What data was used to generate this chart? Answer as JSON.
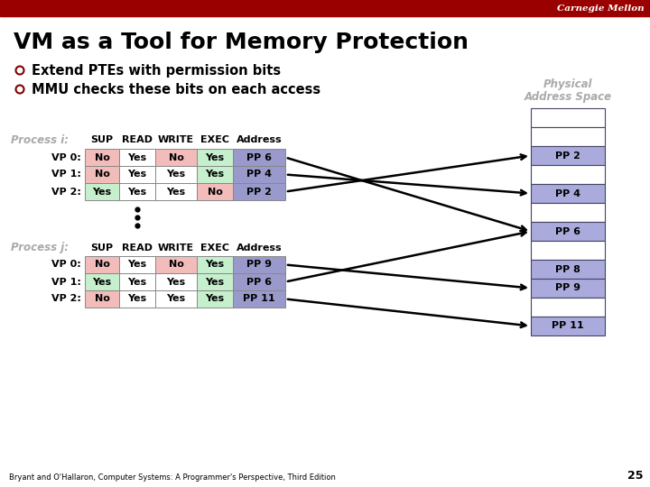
{
  "title": "VM as a Tool for Memory Protection",
  "bullets": [
    "Extend PTEs with permission bits",
    "MMU checks these bits on each access"
  ],
  "header_bar_color": "#9B0000",
  "carnegie_mellon_text": "Carnegie Mellon",
  "bg_color": "#FFFFFF",
  "process_i_label": "Process i:",
  "process_j_label": "Process j:",
  "col_headers": [
    "SUP",
    "READ",
    "WRITE",
    "EXEC",
    "Address"
  ],
  "process_i_rows": [
    {
      "label": "VP 0:",
      "SUP": "No",
      "READ": "Yes",
      "WRITE": "No",
      "EXEC": "Yes",
      "Address": "PP 6"
    },
    {
      "label": "VP 1:",
      "SUP": "No",
      "READ": "Yes",
      "WRITE": "Yes",
      "EXEC": "Yes",
      "Address": "PP 4"
    },
    {
      "label": "VP 2:",
      "SUP": "Yes",
      "READ": "Yes",
      "WRITE": "Yes",
      "EXEC": "No",
      "Address": "PP 2"
    }
  ],
  "process_j_rows": [
    {
      "label": "VP 0:",
      "SUP": "No",
      "READ": "Yes",
      "WRITE": "No",
      "EXEC": "Yes",
      "Address": "PP 9"
    },
    {
      "label": "VP 1:",
      "SUP": "Yes",
      "READ": "Yes",
      "WRITE": "Yes",
      "EXEC": "Yes",
      "Address": "PP 6"
    },
    {
      "label": "VP 2:",
      "SUP": "No",
      "READ": "Yes",
      "WRITE": "Yes",
      "EXEC": "Yes",
      "Address": "PP 11"
    }
  ],
  "phys_entries": [
    {
      "label": "",
      "row": 0,
      "highlighted": false
    },
    {
      "label": "",
      "row": 1,
      "highlighted": false
    },
    {
      "label": "PP 2",
      "row": 2,
      "highlighted": true
    },
    {
      "label": "",
      "row": 3,
      "highlighted": false
    },
    {
      "label": "PP 4",
      "row": 4,
      "highlighted": true
    },
    {
      "label": "",
      "row": 5,
      "highlighted": false
    },
    {
      "label": "PP 6",
      "row": 6,
      "highlighted": true
    },
    {
      "label": "",
      "row": 7,
      "highlighted": false
    },
    {
      "label": "PP 8",
      "row": 8,
      "highlighted": true
    },
    {
      "label": "PP 9",
      "row": 9,
      "highlighted": true
    },
    {
      "label": "",
      "row": 10,
      "highlighted": false
    },
    {
      "label": "PP 11",
      "row": 11,
      "highlighted": true
    }
  ],
  "cell_pink": "#F2BCBB",
  "cell_green": "#C6EFCE",
  "cell_blue_addr": "#9999CC",
  "cell_white": "#FFFFFF",
  "phys_highlight_color": "#AAAADD",
  "phys_border_color": "#444466",
  "arrow_color": "#000000",
  "footnote": "Bryant and O'Hallaron, Computer Systems: A Programmer's Perspective, Third Edition",
  "page_number": "25",
  "process_label_color": "#AAAAAA",
  "phys_label_color": "#AAAAAA",
  "title_color": "#000000",
  "bullet_color": "#000000",
  "bullet_marker_color": "#800000"
}
